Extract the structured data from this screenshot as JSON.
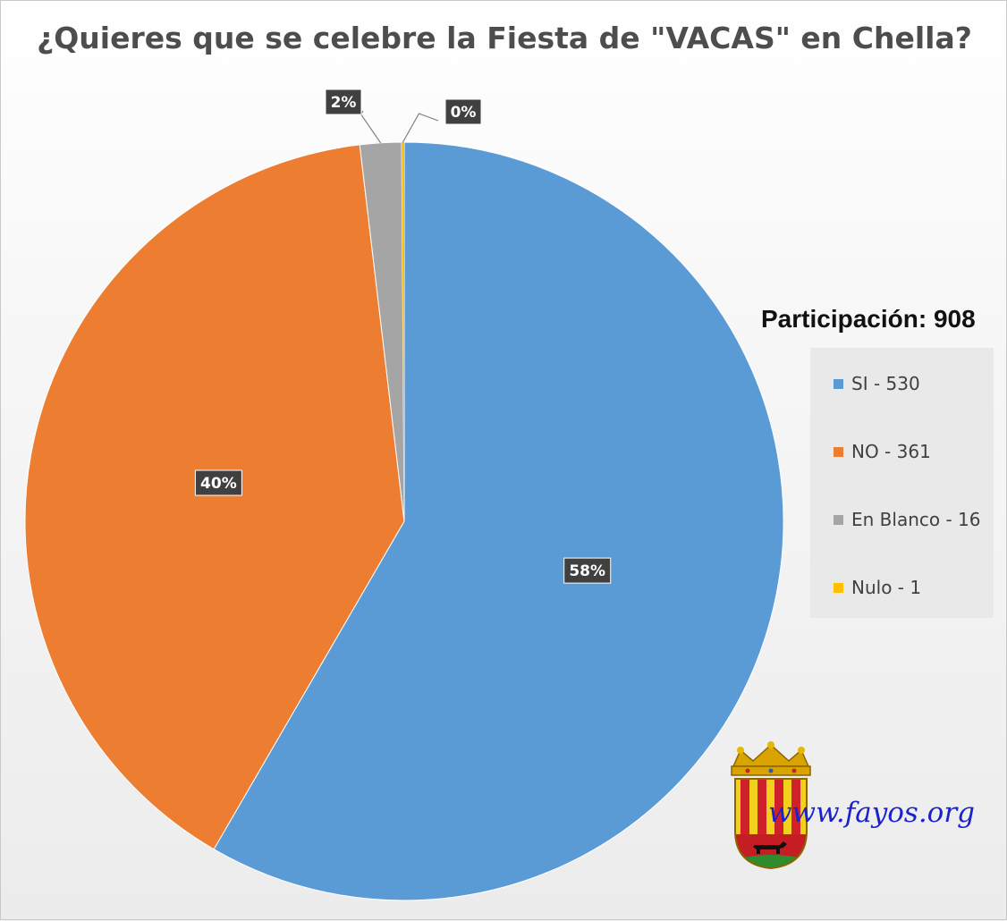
{
  "chart_data": {
    "type": "pie",
    "title": "¿Quieres que se celebre la Fiesta de \"VACAS\" en Chella?",
    "legend_title": "Participación: 908",
    "legend_position": "right",
    "start_angle_deg": 0,
    "direction": "clockwise",
    "slices": [
      {
        "name": "SI - 530",
        "value": 530,
        "label": "58%",
        "color": "#5b9bd5"
      },
      {
        "name": "NO - 361",
        "value": 361,
        "label": "40%",
        "color": "#ed7d31"
      },
      {
        "name": "En Blanco - 16",
        "value": 16,
        "label": "2%",
        "color": "#a5a5a5"
      },
      {
        "name": "Nulo - 1",
        "value": 1,
        "label": "0%",
        "color": "#ffc000"
      }
    ]
  },
  "watermark": {
    "text": "www.fayos.org",
    "color": "#1a22cc"
  }
}
